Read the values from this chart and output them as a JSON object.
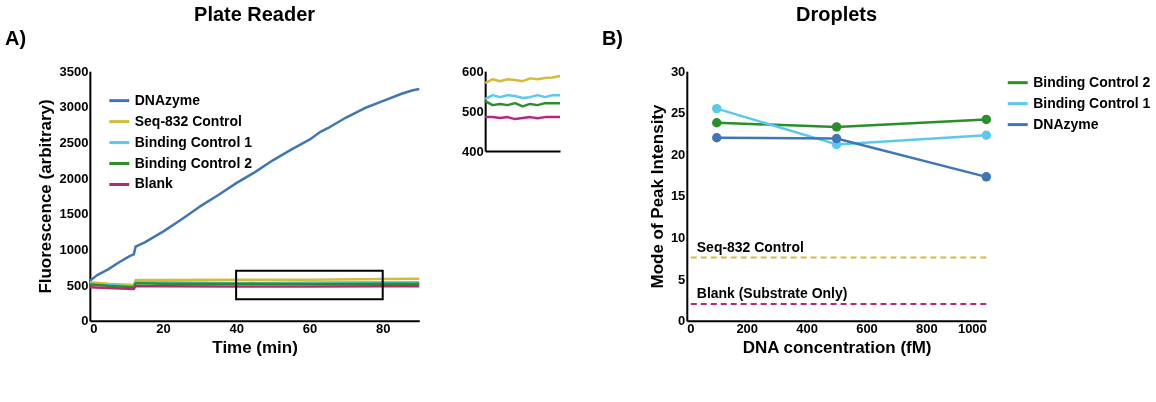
{
  "chart_data": [
    {
      "type": "line",
      "title": "Plate Reader",
      "xlabel": "Time (min)",
      "ylabel": "Fluorescence (arbitrary)",
      "annotations": [
        "A)"
      ],
      "xlim": [
        0,
        90
      ],
      "xticks": [
        0,
        20,
        40,
        60,
        80
      ],
      "ylim": [
        0,
        3500
      ],
      "yticks": [
        0,
        500,
        1000,
        1500,
        2000,
        2500,
        3000,
        3500
      ],
      "grid": false,
      "legend": "top left",
      "marker": "none",
      "series": [
        {
          "name": "DNAzyme",
          "color": "#3f76b5",
          "x": [
            0,
            2,
            5,
            8,
            11,
            12,
            12.5,
            15,
            20,
            25,
            30,
            35,
            40,
            45,
            50,
            55,
            60,
            63,
            65,
            70,
            75,
            80,
            85,
            88,
            90
          ],
          "values": [
            560,
            640,
            720,
            820,
            910,
            930,
            1040,
            1100,
            1250,
            1420,
            1600,
            1760,
            1930,
            2080,
            2250,
            2400,
            2540,
            2650,
            2700,
            2850,
            2980,
            3080,
            3180,
            3230,
            3250
          ]
        },
        {
          "name": "Seq-832 Control",
          "color": "#d4bb3a",
          "x": [
            0,
            5,
            12,
            12.5,
            20,
            40,
            60,
            80,
            90
          ],
          "values": [
            540,
            520,
            500,
            570,
            570,
            575,
            575,
            585,
            590
          ]
        },
        {
          "name": "Binding Control 1",
          "color": "#5bc8ee",
          "x": [
            0,
            5,
            12,
            12.5,
            20,
            40,
            60,
            80,
            90
          ],
          "values": [
            520,
            500,
            480,
            545,
            540,
            530,
            535,
            540,
            540
          ]
        },
        {
          "name": "Binding Control 2",
          "color": "#2a8f2a",
          "x": [
            0,
            5,
            12,
            12.5,
            20,
            40,
            60,
            80,
            90
          ],
          "values": [
            510,
            490,
            470,
            525,
            520,
            520,
            515,
            520,
            520
          ]
        },
        {
          "name": "Blank",
          "color": "#b8287a",
          "x": [
            0,
            5,
            12,
            12.5,
            20,
            40,
            60,
            80,
            90
          ],
          "values": [
            470,
            460,
            445,
            485,
            485,
            480,
            480,
            485,
            485
          ]
        }
      ]
    },
    {
      "type": "line",
      "ylim": [
        400,
        600
      ],
      "yticks": [
        400,
        500,
        600
      ],
      "tick_labels": "y",
      "grid": false,
      "legend": false,
      "marker": "none",
      "categories": [
        null,
        null,
        null,
        null,
        null,
        null,
        null,
        null,
        null,
        null,
        null
      ],
      "series": [
        {
          "color": "#d4bb3a",
          "values": [
            570,
            580,
            575,
            580,
            578,
            575,
            582,
            580,
            583,
            584,
            588
          ]
        },
        {
          "color": "#5bc8ee",
          "values": [
            530,
            540,
            535,
            540,
            538,
            533,
            535,
            540,
            535,
            540,
            540
          ]
        },
        {
          "color": "#2a8f2a",
          "values": [
            525,
            515,
            518,
            515,
            520,
            512,
            518,
            515,
            520,
            520,
            520
          ]
        },
        {
          "color": "#b8287a",
          "values": [
            485,
            485,
            483,
            485,
            480,
            483,
            485,
            482,
            485,
            485,
            485
          ]
        }
      ]
    },
    {
      "type": "line",
      "title": "Droplets",
      "xlabel": "DNA concentration (fM)",
      "ylabel": "Mode of Peak Intensity",
      "annotations": [
        "B)"
      ],
      "xlim": [
        0,
        1000
      ],
      "xticks": [
        0,
        200,
        400,
        600,
        800,
        1000
      ],
      "ylim": [
        0,
        30
      ],
      "yticks": [
        0,
        5,
        10,
        15,
        20,
        25,
        30
      ],
      "grid": false,
      "legend": "right",
      "marker": "circle",
      "x": [
        100,
        500,
        1000
      ],
      "series": [
        {
          "name": "Binding Control 2",
          "color": "#2a8f2a",
          "values": [
            23.8,
            23.3,
            24.2
          ]
        },
        {
          "name": "Binding Control 1",
          "color": "#5bc8ee",
          "values": [
            25.5,
            21.2,
            22.3
          ]
        },
        {
          "name": "DNAzyme",
          "color": "#3f76b5",
          "values": [
            22.0,
            21.9,
            17.3
          ]
        }
      ],
      "ref_lines": [
        {
          "axis": "y",
          "value": 7.6,
          "label": "Seq-832 Control",
          "color": "#d4bb3a",
          "line_style": "dashed"
        },
        {
          "axis": "y",
          "value": 2.0,
          "label": "Blank (Substrate Only)",
          "color": "#b8287a",
          "line_style": "dashed"
        }
      ]
    }
  ]
}
